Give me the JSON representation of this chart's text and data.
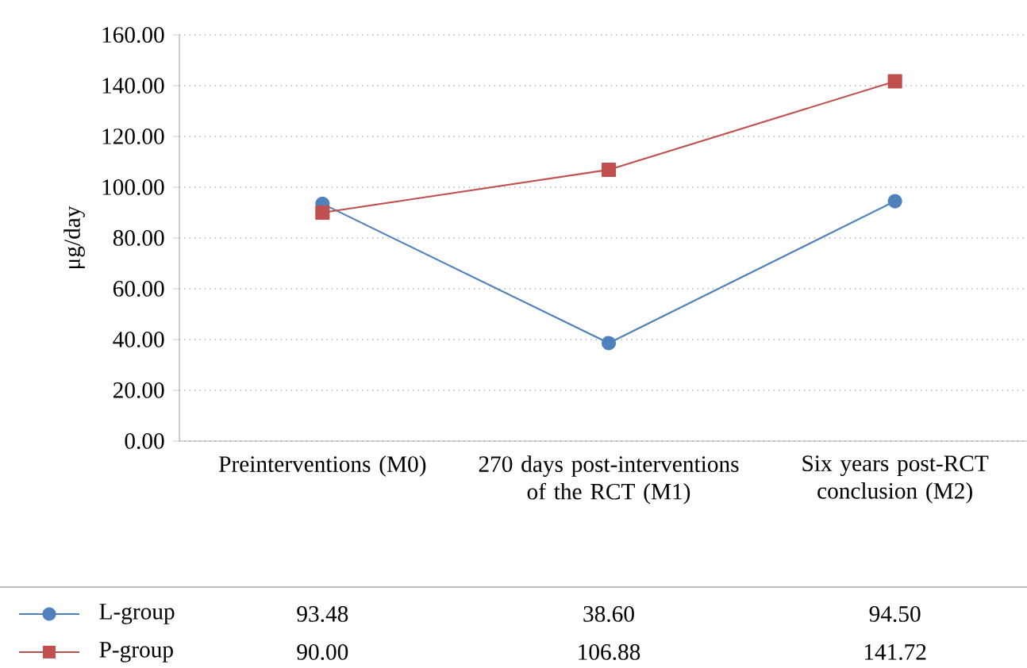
{
  "chart_data": {
    "type": "line",
    "ylabel": "μg/day",
    "categories": [
      "Preinterventions (M0)",
      "270 days post-interventions of the RCT (M1)",
      "Six years post-RCT conclusion (M2)"
    ],
    "series": [
      {
        "name": "L-group",
        "color": "#4f81bd",
        "marker": "circle",
        "values": [
          93.48,
          38.6,
          94.5
        ],
        "value_labels": [
          "93.48",
          "38.60",
          "94.50"
        ]
      },
      {
        "name": "P-group",
        "color": "#c0504d",
        "marker": "square",
        "values": [
          90.0,
          106.88,
          141.72
        ],
        "value_labels": [
          "90.00",
          "106.88",
          "141.72"
        ]
      }
    ],
    "ylim": [
      0,
      160
    ],
    "yticks": [
      {
        "value": 0,
        "label": "0.00"
      },
      {
        "value": 20,
        "label": "20.00"
      },
      {
        "value": 40,
        "label": "40.00"
      },
      {
        "value": 60,
        "label": "60.00"
      },
      {
        "value": 80,
        "label": "80.00"
      },
      {
        "value": 100,
        "label": "100.00"
      },
      {
        "value": 120,
        "label": "120.00"
      },
      {
        "value": 140,
        "label": "140.00"
      },
      {
        "value": 160,
        "label": "160.00"
      }
    ],
    "grid": "y",
    "legend": "bottom",
    "line_style": "solid"
  }
}
